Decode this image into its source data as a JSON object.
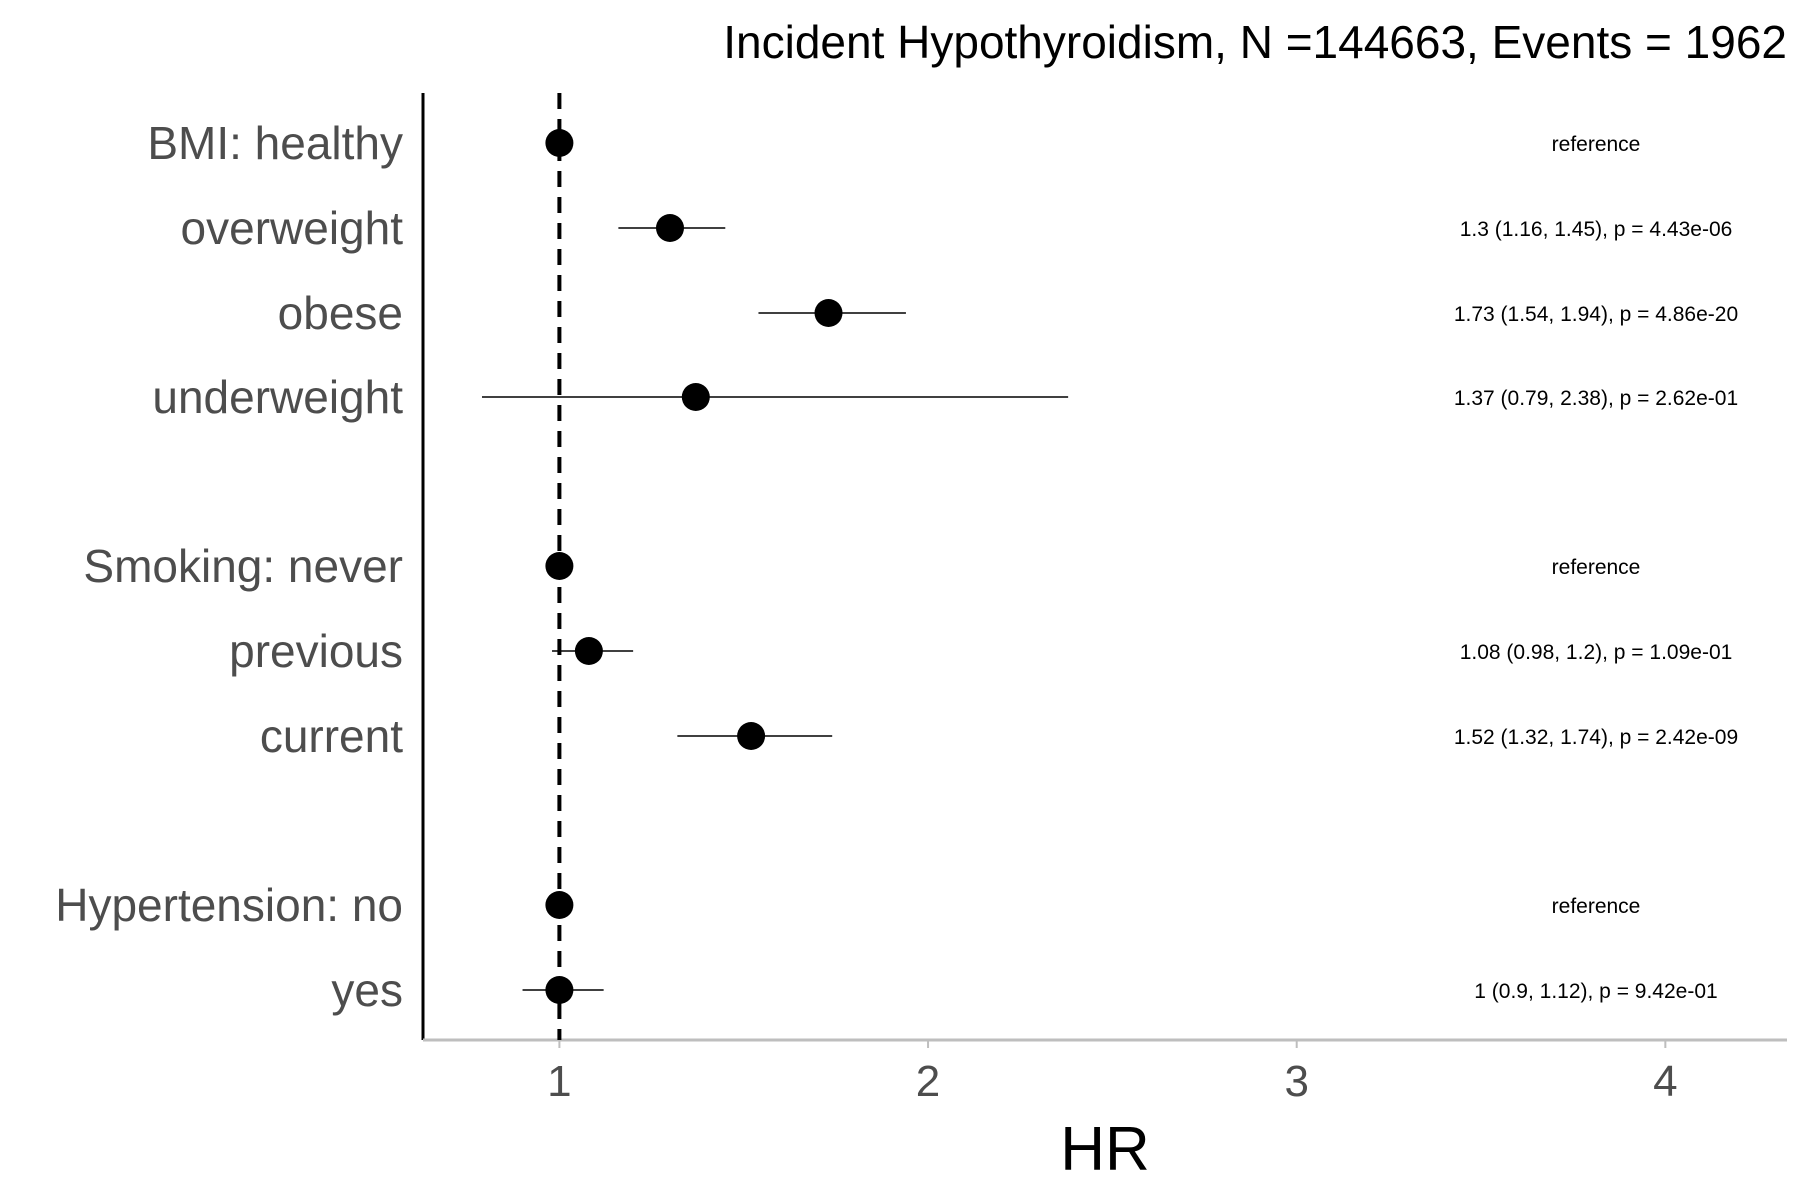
{
  "chart_data": {
    "type": "scatter",
    "subtype": "forest-plot",
    "title": "Incident Hypothyroidism, N =144663, Events = 1962",
    "xlabel": "HR",
    "ylabel": "",
    "xlim": [
      0.63,
      4.33
    ],
    "xticks": [
      "1",
      "2",
      "3",
      "4"
    ],
    "reference_line": 1,
    "grid": false,
    "rows": [
      {
        "label": "BMI: healthy",
        "hr": 1,
        "lo": null,
        "hi": null,
        "annotation": "reference"
      },
      {
        "label": "overweight",
        "hr": 1.3,
        "lo": 1.16,
        "hi": 1.45,
        "annotation": "1.3 (1.16, 1.45), p = 4.43e-06"
      },
      {
        "label": "obese",
        "hr": 1.73,
        "lo": 1.54,
        "hi": 1.94,
        "annotation": "1.73 (1.54, 1.94), p = 4.86e-20"
      },
      {
        "label": "underweight",
        "hr": 1.37,
        "lo": 0.79,
        "hi": 2.38,
        "annotation": "1.37 (0.79, 2.38), p = 2.62e-01"
      },
      {
        "label": "Smoking: never",
        "hr": 1,
        "lo": null,
        "hi": null,
        "annotation": "reference"
      },
      {
        "label": "previous",
        "hr": 1.08,
        "lo": 0.98,
        "hi": 1.2,
        "annotation": "1.08 (0.98, 1.2), p = 1.09e-01"
      },
      {
        "label": "current",
        "hr": 1.52,
        "lo": 1.32,
        "hi": 1.74,
        "annotation": "1.52 (1.32, 1.74), p = 2.42e-09"
      },
      {
        "label": "Hypertension: no",
        "hr": 1,
        "lo": null,
        "hi": null,
        "annotation": "reference"
      },
      {
        "label": "yes",
        "hr": 1,
        "lo": 0.9,
        "hi": 1.12,
        "annotation": "1 (0.9, 1.12), p = 9.42e-01"
      }
    ]
  }
}
